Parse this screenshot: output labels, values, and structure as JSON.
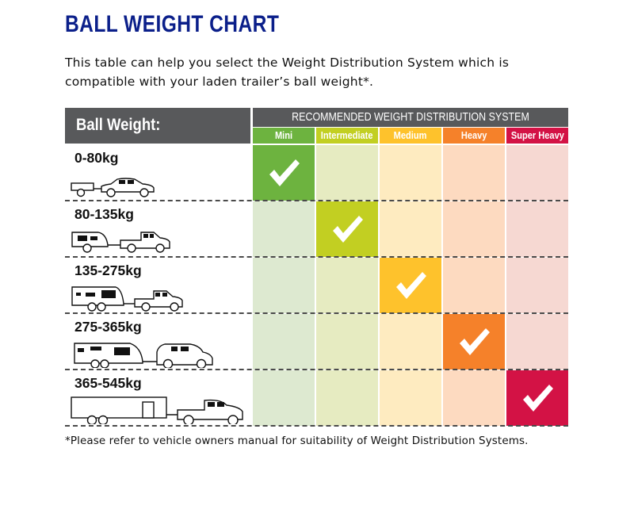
{
  "title": "BALL WEIGHT CHART",
  "intro": "This table can help you select the Weight Distribution System which is compatible with your laden trailer’s ball weight*.",
  "table": {
    "row_header": "Ball Weight:",
    "group_header": "RECOMMENDED WEIGHT DISTRIBUTION SYSTEM",
    "categories": [
      {
        "label": "Mini",
        "color": "#6db33f",
        "tint": "#dde9d0"
      },
      {
        "label": "Intermediate",
        "color": "#c2cf22",
        "tint": "#e6ebc1"
      },
      {
        "label": "Medium",
        "color": "#fec22c",
        "tint": "#feebc0"
      },
      {
        "label": "Heavy",
        "color": "#f5812a",
        "tint": "#fddac0"
      },
      {
        "label": "Super Heavy",
        "color": "#d31245",
        "tint": "#f6d8d2"
      }
    ],
    "rows": [
      {
        "range": "0-80kg",
        "vehicle": "car-with-box-trailer-icon",
        "recommended": "Mini"
      },
      {
        "range": "80-135kg",
        "vehicle": "ute-with-small-caravan-icon",
        "recommended": "Intermediate"
      },
      {
        "range": "135-275kg",
        "vehicle": "ute-with-tandem-caravan-icon",
        "recommended": "Medium"
      },
      {
        "range": "275-365kg",
        "vehicle": "suv-with-large-caravan-icon",
        "recommended": "Heavy"
      },
      {
        "range": "365-545kg",
        "vehicle": "truck-with-enclosed-trailer-icon",
        "recommended": "Super Heavy"
      }
    ],
    "check_icon": "checkmark-icon"
  },
  "footnote": "*Please refer to vehicle owners manual for suitability of Weight Distribution Systems.",
  "chart_data": {
    "type": "table",
    "title": "BALL WEIGHT CHART",
    "row_header": "Ball Weight",
    "column_header": "RECOMMENDED WEIGHT DISTRIBUTION SYSTEM",
    "columns": [
      "Mini",
      "Intermediate",
      "Medium",
      "Heavy",
      "Super Heavy"
    ],
    "rows": [
      "0-80kg",
      "80-135kg",
      "135-275kg",
      "275-365kg",
      "365-545kg"
    ],
    "matrix": [
      [
        1,
        0,
        0,
        0,
        0
      ],
      [
        0,
        1,
        0,
        0,
        0
      ],
      [
        0,
        0,
        1,
        0,
        0
      ],
      [
        0,
        0,
        0,
        1,
        0
      ],
      [
        0,
        0,
        0,
        0,
        1
      ]
    ]
  }
}
